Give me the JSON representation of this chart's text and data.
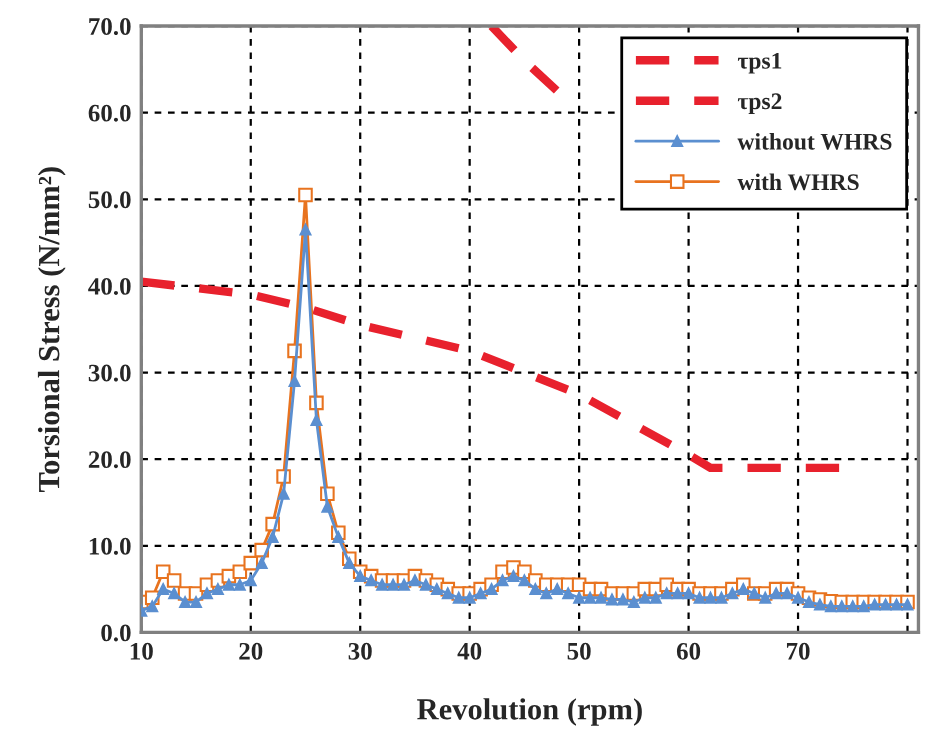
{
  "chart_data": {
    "type": "line",
    "xlabel": "Revolution (rpm)",
    "ylabel": "Torsional Stress (N/mm²)",
    "xlim": [
      10,
      81
    ],
    "xticks": [
      10,
      20,
      30,
      40,
      50,
      60,
      70,
      {
        "value": 80,
        "label": null
      }
    ],
    "ylim": [
      0,
      70
    ],
    "yticks": [
      {
        "value": 0,
        "label": "0.0"
      },
      {
        "value": 10,
        "label": "10.0"
      },
      {
        "value": 20,
        "label": "20.0"
      },
      {
        "value": 30,
        "label": "30.0"
      },
      {
        "value": 40,
        "label": "40.0"
      },
      {
        "value": 50,
        "label": "50.0"
      },
      {
        "value": 60,
        "label": "60.0"
      },
      {
        "value": 70,
        "label": "70.0"
      }
    ],
    "grid": true,
    "legend": "top right",
    "series": [
      {
        "name": "τps1",
        "color": "#e8212d",
        "line_style": "dashed",
        "marker": "none",
        "x": [
          10,
          20,
          25,
          30,
          40,
          50,
          60,
          62,
          74
        ],
        "values": [
          40.5,
          39,
          37.5,
          35.5,
          32.5,
          27.5,
          20.5,
          19,
          19
        ]
      },
      {
        "name": "τps2",
        "color": "#e8212d",
        "line_style": "dashed",
        "marker": "none",
        "x": [
          42,
          45,
          48
        ],
        "values": [
          70,
          66,
          62.5
        ]
      },
      {
        "name": "without WHRS",
        "color": "#5b8fd0",
        "line_style": "solid",
        "marker": "triangle",
        "x": [
          10,
          11,
          12,
          13,
          14,
          15,
          16,
          17,
          18,
          19,
          20,
          21,
          22,
          23,
          24,
          25,
          26,
          27,
          28,
          29,
          30,
          31,
          32,
          33,
          34,
          35,
          36,
          37,
          38,
          39,
          40,
          41,
          42,
          43,
          44,
          45,
          46,
          47,
          48,
          49,
          50,
          51,
          52,
          53,
          54,
          55,
          56,
          57,
          58,
          59,
          60,
          61,
          62,
          63,
          64,
          65,
          66,
          67,
          68,
          69,
          70,
          71,
          72,
          73,
          74,
          75,
          76,
          77,
          78,
          79,
          80
        ],
        "values": [
          2.5,
          3,
          5,
          4.5,
          3.5,
          3.5,
          4.5,
          5,
          5.5,
          5.5,
          6,
          8,
          11,
          16,
          29,
          46.5,
          24.5,
          14.5,
          11,
          8,
          6.5,
          6,
          5.5,
          5.5,
          5.5,
          6,
          5.5,
          5,
          4.5,
          4,
          4,
          4.5,
          5,
          6,
          6.5,
          6,
          5,
          4.5,
          5,
          4.5,
          4,
          4,
          4,
          3.8,
          3.8,
          3.5,
          4,
          4,
          4.5,
          4.5,
          4.5,
          4,
          4,
          4,
          4.5,
          5,
          4.5,
          4,
          4.5,
          4.5,
          4,
          3.5,
          3.2,
          3,
          3,
          3,
          3,
          3.2,
          3.2,
          3.2,
          3.2
        ]
      },
      {
        "name": "with WHRS",
        "color": "#e8731f",
        "line_style": "solid",
        "marker": "square",
        "x": [
          10,
          11,
          12,
          13,
          14,
          15,
          16,
          17,
          18,
          19,
          20,
          21,
          22,
          23,
          24,
          25,
          26,
          27,
          28,
          29,
          30,
          31,
          32,
          33,
          34,
          35,
          36,
          37,
          38,
          39,
          40,
          41,
          42,
          43,
          44,
          45,
          46,
          47,
          48,
          49,
          50,
          51,
          52,
          53,
          54,
          55,
          56,
          57,
          58,
          59,
          60,
          61,
          62,
          63,
          64,
          65,
          66,
          67,
          68,
          69,
          70,
          71,
          72,
          73,
          74,
          75,
          76,
          77,
          78,
          79,
          80
        ],
        "values": [
          3.5,
          4,
          7,
          6,
          4.5,
          4.5,
          5.5,
          6,
          6.5,
          7,
          8,
          9.5,
          12.5,
          18,
          32.5,
          50.5,
          26.5,
          16,
          11.5,
          8.5,
          7,
          6.5,
          6,
          6,
          6,
          6.5,
          6,
          5.5,
          5,
          4.5,
          4.5,
          5,
          5.5,
          7,
          7.5,
          7,
          6,
          5.5,
          5.5,
          5.5,
          5.5,
          5,
          5,
          4.5,
          4.5,
          4.5,
          5,
          5,
          5.5,
          5,
          5,
          4.5,
          4.5,
          4.5,
          5,
          5.5,
          4.5,
          4.5,
          5,
          5,
          4.5,
          4,
          3.8,
          3.6,
          3.5,
          3.5,
          3.5,
          3.5,
          3.5,
          3.5,
          3.5
        ]
      }
    ]
  }
}
